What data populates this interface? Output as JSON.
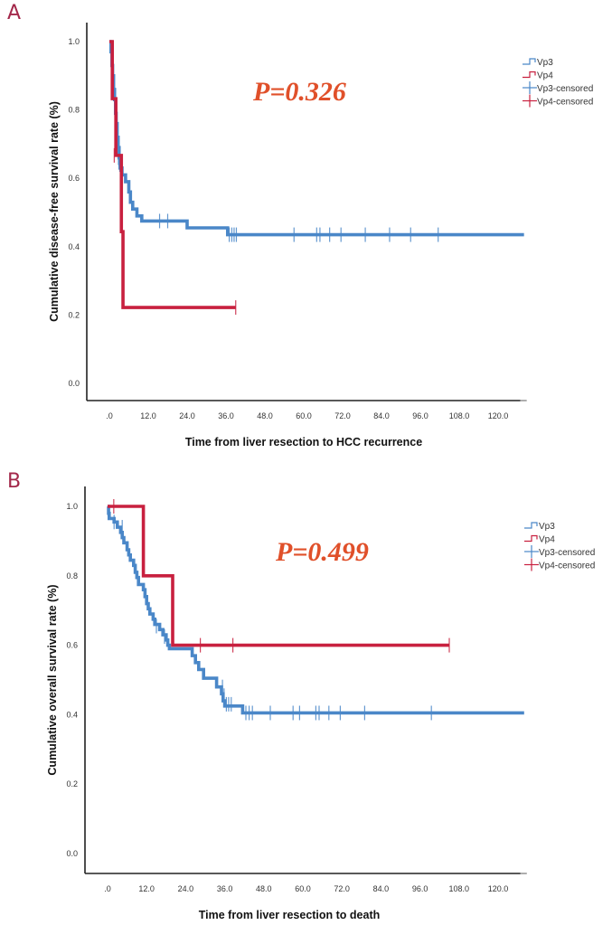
{
  "panels": [
    {
      "letter": "A"
    },
    {
      "letter": "B"
    }
  ],
  "colors": {
    "vp3": "#4a87c8",
    "vp4": "#c8203f",
    "pvalue": "#e0502a",
    "panel_letter": "#a3284a"
  },
  "chart_data": [
    {
      "type": "line",
      "subtype": "kaplan-meier",
      "title": "",
      "xlabel": "Time from liver resection to HCC recurrence",
      "ylabel": "Cumulative disease-free survival rate (%)",
      "xlim": [
        -3,
        128
      ],
      "ylim": [
        0,
        1.0
      ],
      "xticks": [
        ".0",
        "12.0",
        "24.0",
        "36.0",
        "48.0",
        "60.0",
        "72.0",
        "84.0",
        "96.0",
        "108.0",
        "120.0"
      ],
      "xtick_values": [
        0,
        12,
        24,
        36,
        48,
        60,
        72,
        84,
        96,
        108,
        120
      ],
      "yticks": [
        "0.0",
        "0.2",
        "0.4",
        "0.6",
        "0.8",
        "1.0"
      ],
      "ytick_values": [
        0,
        0.2,
        0.4,
        0.6,
        0.8,
        1.0
      ],
      "annotation": "P=0.326",
      "legend": [
        "Vp3",
        "Vp4",
        "Vp3-censored",
        "Vp4-censored"
      ],
      "legend_position": "top-right",
      "series": [
        {
          "name": "Vp3",
          "steps": [
            [
              0,
              1.0
            ],
            [
              0.5,
              0.97
            ],
            [
              0.8,
              0.93
            ],
            [
              1.0,
              0.9
            ],
            [
              1.3,
              0.86
            ],
            [
              1.6,
              0.83
            ],
            [
              1.9,
              0.79
            ],
            [
              2.1,
              0.76
            ],
            [
              2.4,
              0.72
            ],
            [
              2.7,
              0.69
            ],
            [
              3.0,
              0.66
            ],
            [
              3.3,
              0.63
            ],
            [
              3.9,
              0.61
            ],
            [
              5.0,
              0.59
            ],
            [
              6.0,
              0.56
            ],
            [
              6.5,
              0.53
            ],
            [
              7.2,
              0.51
            ],
            [
              8.5,
              0.49
            ],
            [
              10.0,
              0.475
            ],
            [
              24.0,
              0.455
            ],
            [
              36.5,
              0.435
            ],
            [
              128,
              0.435
            ]
          ],
          "censored": [
            [
              2.2,
              0.79
            ],
            [
              2.8,
              0.66
            ],
            [
              3.2,
              0.64
            ],
            [
              3.4,
              0.62
            ],
            [
              15.5,
              0.475
            ],
            [
              18.0,
              0.475
            ],
            [
              37.0,
              0.435
            ],
            [
              37.8,
              0.435
            ],
            [
              38.5,
              0.435
            ],
            [
              39.2,
              0.435
            ],
            [
              57.0,
              0.435
            ],
            [
              64.0,
              0.435
            ],
            [
              65.0,
              0.435
            ],
            [
              68.0,
              0.435
            ],
            [
              71.5,
              0.435
            ],
            [
              79.0,
              0.435
            ],
            [
              86.5,
              0.435
            ],
            [
              93.0,
              0.435
            ],
            [
              101.5,
              0.435
            ]
          ]
        },
        {
          "name": "Vp4",
          "steps": [
            [
              0,
              1.0
            ],
            [
              0.9,
              0.833
            ],
            [
              2.0,
              0.667
            ],
            [
              3.7,
              0.444
            ],
            [
              4.2,
              0.222
            ],
            [
              39.0,
              0.222
            ]
          ],
          "censored": [
            [
              1.5,
              0.667
            ],
            [
              39.0,
              0.222
            ]
          ]
        }
      ]
    },
    {
      "type": "line",
      "subtype": "kaplan-meier",
      "title": "",
      "xlabel": "Time from liver resection to death",
      "ylabel": "Cumulative overall survival rate (%)",
      "xlim": [
        -3,
        128
      ],
      "ylim": [
        0,
        1.0
      ],
      "xticks": [
        ".0",
        "12.0",
        "24.0",
        "36.0",
        "48.0",
        "60.0",
        "72.0",
        "84.0",
        "96.0",
        "108.0",
        "120.0"
      ],
      "xtick_values": [
        0,
        12,
        24,
        36,
        48,
        60,
        72,
        84,
        96,
        108,
        120
      ],
      "yticks": [
        "0.0",
        "0.2",
        "0.4",
        "0.6",
        "0.8",
        "1.0"
      ],
      "ytick_values": [
        0,
        0.2,
        0.4,
        0.6,
        0.8,
        1.0
      ],
      "annotation": "P=0.499",
      "legend": [
        "Vp3",
        "Vp4",
        "Vp3-censored",
        "Vp4-censored"
      ],
      "legend_position": "top-right",
      "series": [
        {
          "name": "Vp3",
          "steps": [
            [
              0,
              1.0
            ],
            [
              0.3,
              0.98
            ],
            [
              0.5,
              0.965
            ],
            [
              2.0,
              0.955
            ],
            [
              3.0,
              0.94
            ],
            [
              4.0,
              0.925
            ],
            [
              4.5,
              0.91
            ],
            [
              5.0,
              0.895
            ],
            [
              6.0,
              0.875
            ],
            [
              6.5,
              0.86
            ],
            [
              7.0,
              0.845
            ],
            [
              8.0,
              0.83
            ],
            [
              8.5,
              0.81
            ],
            [
              9.0,
              0.795
            ],
            [
              9.5,
              0.775
            ],
            [
              11.0,
              0.76
            ],
            [
              11.5,
              0.74
            ],
            [
              12.0,
              0.72
            ],
            [
              12.5,
              0.705
            ],
            [
              13.0,
              0.69
            ],
            [
              14.0,
              0.675
            ],
            [
              14.5,
              0.66
            ],
            [
              16.0,
              0.645
            ],
            [
              17.0,
              0.63
            ],
            [
              18.0,
              0.615
            ],
            [
              18.5,
              0.6
            ],
            [
              19.0,
              0.59
            ],
            [
              26.0,
              0.57
            ],
            [
              27.0,
              0.55
            ],
            [
              28.0,
              0.53
            ],
            [
              29.5,
              0.505
            ],
            [
              33.5,
              0.48
            ],
            [
              35.0,
              0.46
            ],
            [
              35.5,
              0.44
            ],
            [
              36.0,
              0.425
            ],
            [
              41.5,
              0.405
            ],
            [
              128,
              0.405
            ]
          ],
          "censored": [
            [
              2.0,
              0.955
            ],
            [
              4.5,
              0.94
            ],
            [
              15.0,
              0.655
            ],
            [
              17.5,
              0.625
            ],
            [
              35.3,
              0.48
            ],
            [
              35.8,
              0.455
            ],
            [
              36.5,
              0.43
            ],
            [
              37.2,
              0.43
            ],
            [
              38.0,
              0.43
            ],
            [
              42.5,
              0.405
            ],
            [
              43.5,
              0.405
            ],
            [
              44.5,
              0.405
            ],
            [
              50.0,
              0.405
            ],
            [
              57.0,
              0.405
            ],
            [
              59.0,
              0.405
            ],
            [
              64.0,
              0.405
            ],
            [
              65.0,
              0.405
            ],
            [
              68.0,
              0.405
            ],
            [
              71.5,
              0.405
            ],
            [
              79.0,
              0.405
            ],
            [
              99.5,
              0.405
            ]
          ]
        },
        {
          "name": "Vp4",
          "steps": [
            [
              0,
              1.0
            ],
            [
              11.0,
              0.8
            ],
            [
              20.0,
              0.6
            ],
            [
              105.0,
              0.6
            ]
          ],
          "censored": [
            [
              1.9,
              1.0
            ],
            [
              28.5,
              0.6
            ],
            [
              38.5,
              0.6
            ],
            [
              105.0,
              0.6
            ]
          ]
        }
      ]
    }
  ]
}
